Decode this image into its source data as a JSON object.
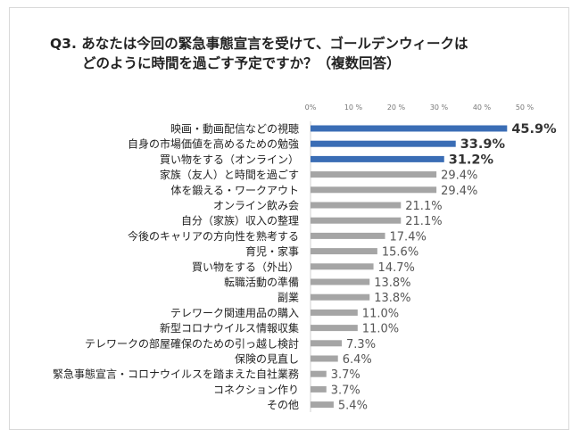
{
  "chart_data": {
    "type": "bar",
    "orientation": "horizontal",
    "title_lines": [
      "Q3. あなたは今回の緊急事態宣言を受けて、ゴールデンウィークは",
      "どのように時間を過ごす予定ですか？（複数回答）"
    ],
    "xlim": [
      0,
      50
    ],
    "xticks": [
      "0%",
      "10 %",
      "20 %",
      "30 %",
      "40 %",
      "50 %"
    ],
    "grid": false,
    "highlight_color": "#3a6db5",
    "bar_color": "#a5a5a5",
    "highlight_count": 3,
    "categories": [
      "映画・動画配信などの視聴",
      "自身の市場価値を高めるための勉強",
      "買い物をする（オンライン）",
      "家族（友人）と時間を過ごす",
      "体を鍛える・ワークアウト",
      "オンライン飲み会",
      "自分（家族）収入の整理",
      "今後のキャリアの方向性を熟考する",
      "育児・家事",
      "買い物をする（外出）",
      "転職活動の準備",
      "副業",
      "テレワーク関連用品の購入",
      "新型コロナウイルス情報収集",
      "テレワークの部屋確保のための引っ越し検討",
      "保険の見直し",
      "緊急事態宣言・コロナウイルスを踏まえた自社業務",
      "コネクション作り",
      "その他"
    ],
    "values": [
      45.9,
      33.9,
      31.2,
      29.4,
      29.4,
      21.1,
      21.1,
      17.4,
      15.6,
      14.7,
      13.8,
      13.8,
      11.0,
      11.0,
      7.3,
      6.4,
      3.7,
      3.7,
      5.4
    ],
    "value_labels": [
      "45.9%",
      "33.9%",
      "31.2%",
      "29.4%",
      "29.4%",
      "21.1%",
      "21.1%",
      "17.4%",
      "15.6%",
      "14.7%",
      "13.8%",
      "13.8%",
      "11.0%",
      "11.0%",
      "7.3%",
      "6.4%",
      "3.7%",
      "3.7%",
      "5.4%"
    ]
  }
}
